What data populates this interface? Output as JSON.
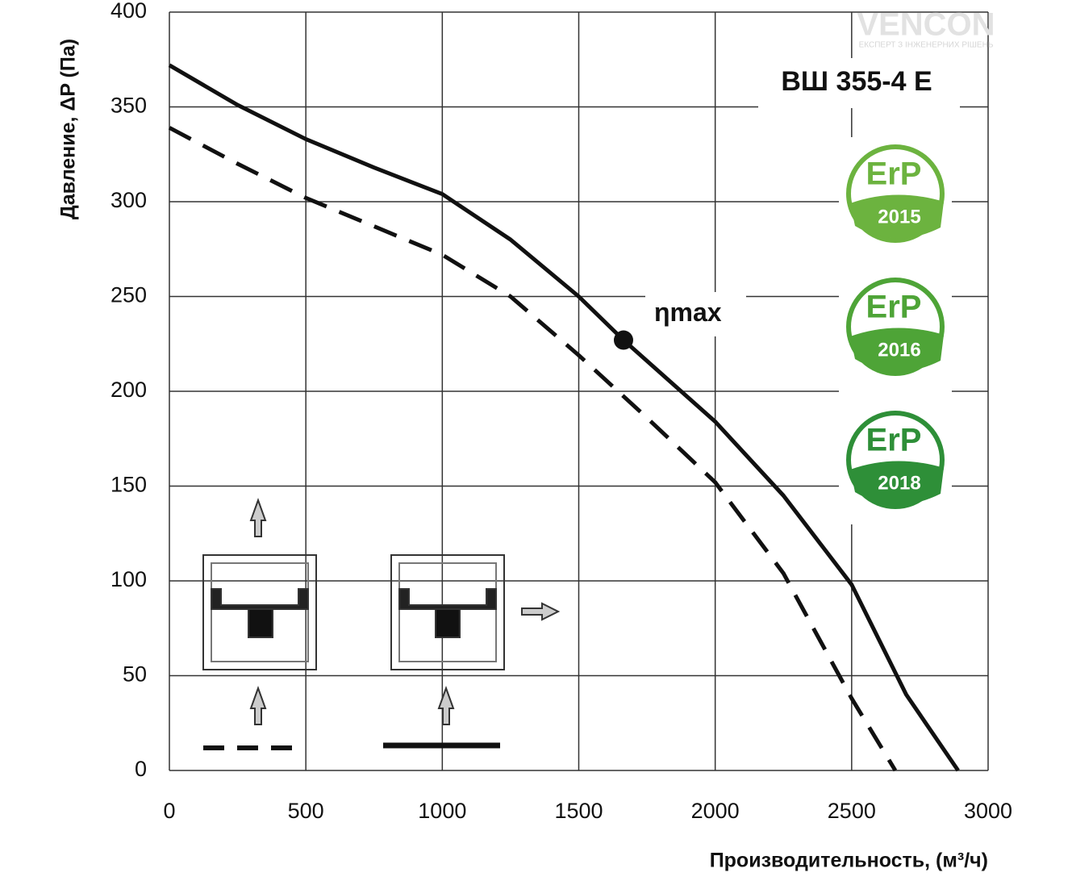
{
  "chart_data": {
    "type": "line",
    "title": "ВШ 355-4 Е",
    "x_label": "Производительность, (м³/ч)",
    "y_label": "Давление, ΔP (Па)",
    "xlim": [
      0,
      3000
    ],
    "xticks": [
      0,
      500,
      1000,
      1500,
      2000,
      2500,
      3000
    ],
    "ylim": [
      0,
      400
    ],
    "yticks": [
      0,
      50,
      100,
      150,
      200,
      250,
      300,
      350,
      400
    ],
    "grid": true,
    "series": [
      {
        "color": "#111111",
        "style": "solid",
        "x": [
          0,
          250,
          500,
          750,
          1000,
          1250,
          1500,
          1664,
          2000,
          2250,
          2500,
          2700,
          2890
        ],
        "values": [
          372,
          351,
          333,
          318,
          304,
          280,
          250,
          227,
          184,
          145,
          98,
          40,
          0
        ]
      },
      {
        "color": "#111111",
        "style": "dashed",
        "x": [
          0,
          250,
          500,
          750,
          1000,
          1250,
          1500,
          1750,
          2000,
          2250,
          2500,
          2660
        ],
        "values": [
          339,
          320,
          302,
          287,
          272,
          250,
          219,
          186,
          152,
          104,
          38,
          0
        ]
      }
    ],
    "annotations": [
      {
        "text": "ηmax",
        "x": 1664,
        "y": 227
      }
    ],
    "badges": [
      {
        "label": "ErP",
        "year": "2015"
      },
      {
        "label": "ErP",
        "year": "2016"
      },
      {
        "label": "ErP",
        "year": "2018"
      }
    ],
    "logo": {
      "name": "VENCON",
      "tagline": "ЕКСПЕРТ З ІНЖЕНЕРНИХ РІШЕНЬ"
    }
  }
}
